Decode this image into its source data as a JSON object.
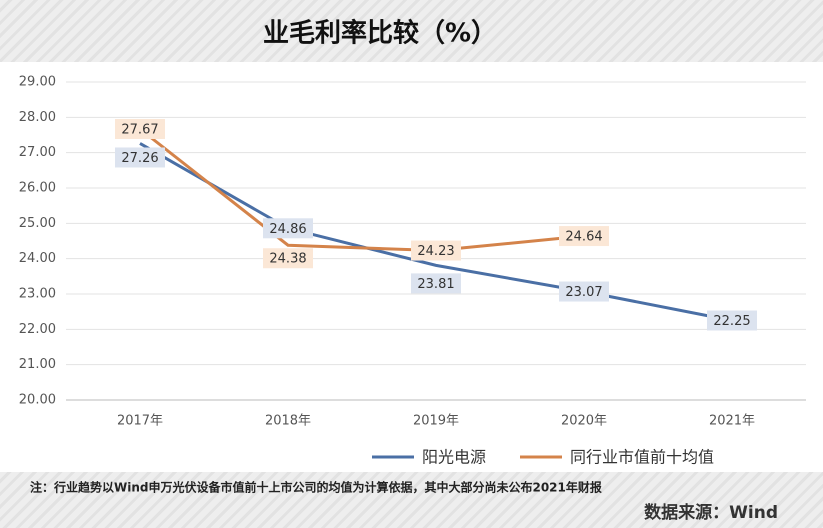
{
  "chart_data": {
    "type": "line",
    "title": "业毛利率比较（%）",
    "categories": [
      "2017年",
      "2018年",
      "2019年",
      "2020年",
      "2021年"
    ],
    "series": [
      {
        "name": "阳光电源",
        "color": "#4a6fa5",
        "label_fill": "#dce3ef",
        "values": [
          27.26,
          24.86,
          23.81,
          23.07,
          22.25
        ]
      },
      {
        "name": "同行业市值前十均值",
        "color": "#d4834a",
        "label_fill": "#fbe7d6",
        "values": [
          27.67,
          24.38,
          24.23,
          24.64,
          null
        ]
      }
    ],
    "ylim": [
      20,
      29
    ],
    "yticks": [
      {
        "value": 20,
        "label": "20.00"
      },
      {
        "value": 21,
        "label": "21.00"
      },
      {
        "value": 22,
        "label": "22.00"
      },
      {
        "value": 23,
        "label": "23.00"
      },
      {
        "value": 24,
        "label": "24.00"
      },
      {
        "value": 25,
        "label": "25.00"
      },
      {
        "value": 26,
        "label": "26.00"
      },
      {
        "value": 27,
        "label": "27.00"
      },
      {
        "value": 28,
        "label": "28.00"
      },
      {
        "value": 29,
        "label": "29.00"
      }
    ],
    "grid": true,
    "legend": "bottom",
    "note": "注：行业趋势以Wind申万光伏设备市值前十上市公司的均值为计算依据，其中大部分尚未公布2021年财报",
    "source": "数据来源：Wind"
  }
}
